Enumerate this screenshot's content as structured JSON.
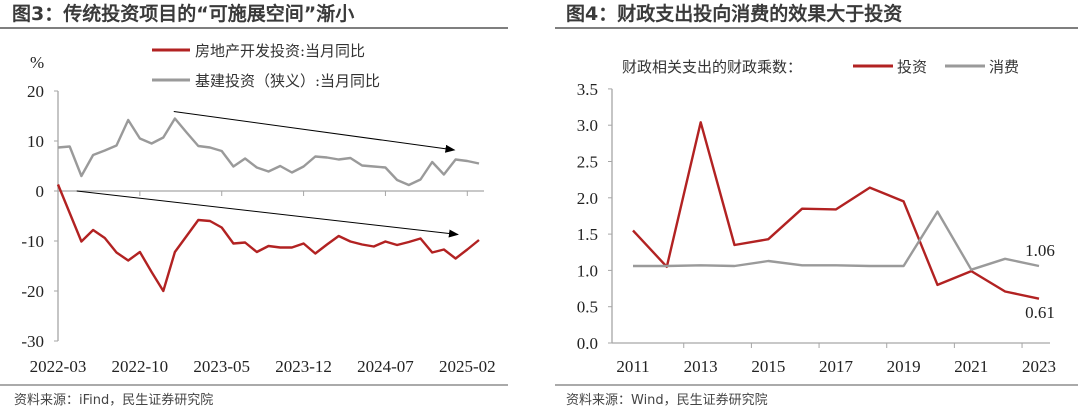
{
  "colors": {
    "red": "#b22222",
    "gray": "#9a9a9a",
    "axis": "#a6a6a6"
  },
  "chart_data": [
    {
      "type": "line",
      "title": "图3：传统投资项目的“可施展空间”渐小",
      "ylabel": "%",
      "ylim": [
        -30,
        20
      ],
      "yticks": [
        "20",
        "10",
        "0",
        "-10",
        "-20",
        "-30"
      ],
      "yticks_values": [
        20,
        10,
        0,
        -10,
        -20,
        -30
      ],
      "xtick_labels": [
        "2022-03",
        "2022-10",
        "2023-05",
        "2023-12",
        "2024-07",
        "2025-02"
      ],
      "xtick_index": [
        0,
        7,
        14,
        21,
        28,
        35
      ],
      "series": [
        {
          "name": "房地产开发投资:当月同比",
          "color": "red",
          "values": [
            1.3,
            null,
            -10.1,
            -7.8,
            -9.4,
            -12.3,
            -13.9,
            -12.2,
            -16.2,
            -20,
            -12.2,
            -9,
            -5.8,
            -6,
            -7.3,
            -10.5,
            -10.3,
            -12.2,
            -11,
            -11.3,
            -11.3,
            -10.5,
            -12.5,
            -10.7,
            -9,
            -10.1,
            -10.7,
            -11.1,
            -10.1,
            -10.8,
            -10.2,
            -9.5,
            -12.3,
            -11.7,
            -13.5,
            -11.7,
            -9.8
          ]
        },
        {
          "name": "基建投资（狭义）:当月同比",
          "color": "gray",
          "values": [
            8.7,
            8.9,
            3,
            7.2,
            8.1,
            9.1,
            14.2,
            10.5,
            9.5,
            10.7,
            14.5,
            11.7,
            9,
            8.7,
            8,
            4.9,
            6.5,
            4.7,
            3.9,
            5,
            3.7,
            4.9,
            6.9,
            6.7,
            6.3,
            6.6,
            5.1,
            4.9,
            4.7,
            2.2,
            1.2,
            2.3,
            5.8,
            3.3,
            6.3,
            6,
            5.5
          ]
        }
      ],
      "annotations": [
        {
          "type": "arrow",
          "from": [
            9.9,
            15.9
          ],
          "to": [
            33.9,
            8.2
          ]
        },
        {
          "type": "arrow",
          "from": [
            1.6,
            0
          ],
          "to": [
            34.2,
            -8.7
          ]
        }
      ],
      "source": "资料来源：iFind，民生证券研究院"
    },
    {
      "type": "line",
      "title": "图4：财政支出投向消费的效果大于投资",
      "legend_title": "财政相关支出的财政乘数：",
      "ylim": [
        0,
        3.5
      ],
      "yticks": [
        "3.5",
        "3.0",
        "2.5",
        "2.0",
        "1.5",
        "1.0",
        "0.5",
        "0.0"
      ],
      "yticks_values": [
        3.5,
        3.0,
        2.5,
        2.0,
        1.5,
        1.0,
        0.5,
        0.0
      ],
      "x": [
        2011,
        2012,
        2013,
        2014,
        2015,
        2016,
        2017,
        2018,
        2019,
        2020,
        2021,
        2022,
        2023
      ],
      "xtick_labels": [
        "2011",
        "2013",
        "2015",
        "2017",
        "2019",
        "2021",
        "2023"
      ],
      "series": [
        {
          "name": "投资",
          "color": "red",
          "values": [
            1.55,
            1.05,
            3.04,
            1.35,
            1.43,
            1.85,
            1.84,
            2.14,
            1.95,
            0.8,
            0.99,
            0.71,
            0.61
          ],
          "end_label": "0.61"
        },
        {
          "name": "消费",
          "color": "gray",
          "values": [
            1.06,
            1.06,
            1.07,
            1.06,
            1.13,
            1.07,
            1.07,
            1.06,
            1.06,
            1.81,
            1.01,
            1.16,
            1.06
          ],
          "end_label": "1.06"
        }
      ],
      "source": "资料来源：Wind，民生证券研究院"
    }
  ]
}
